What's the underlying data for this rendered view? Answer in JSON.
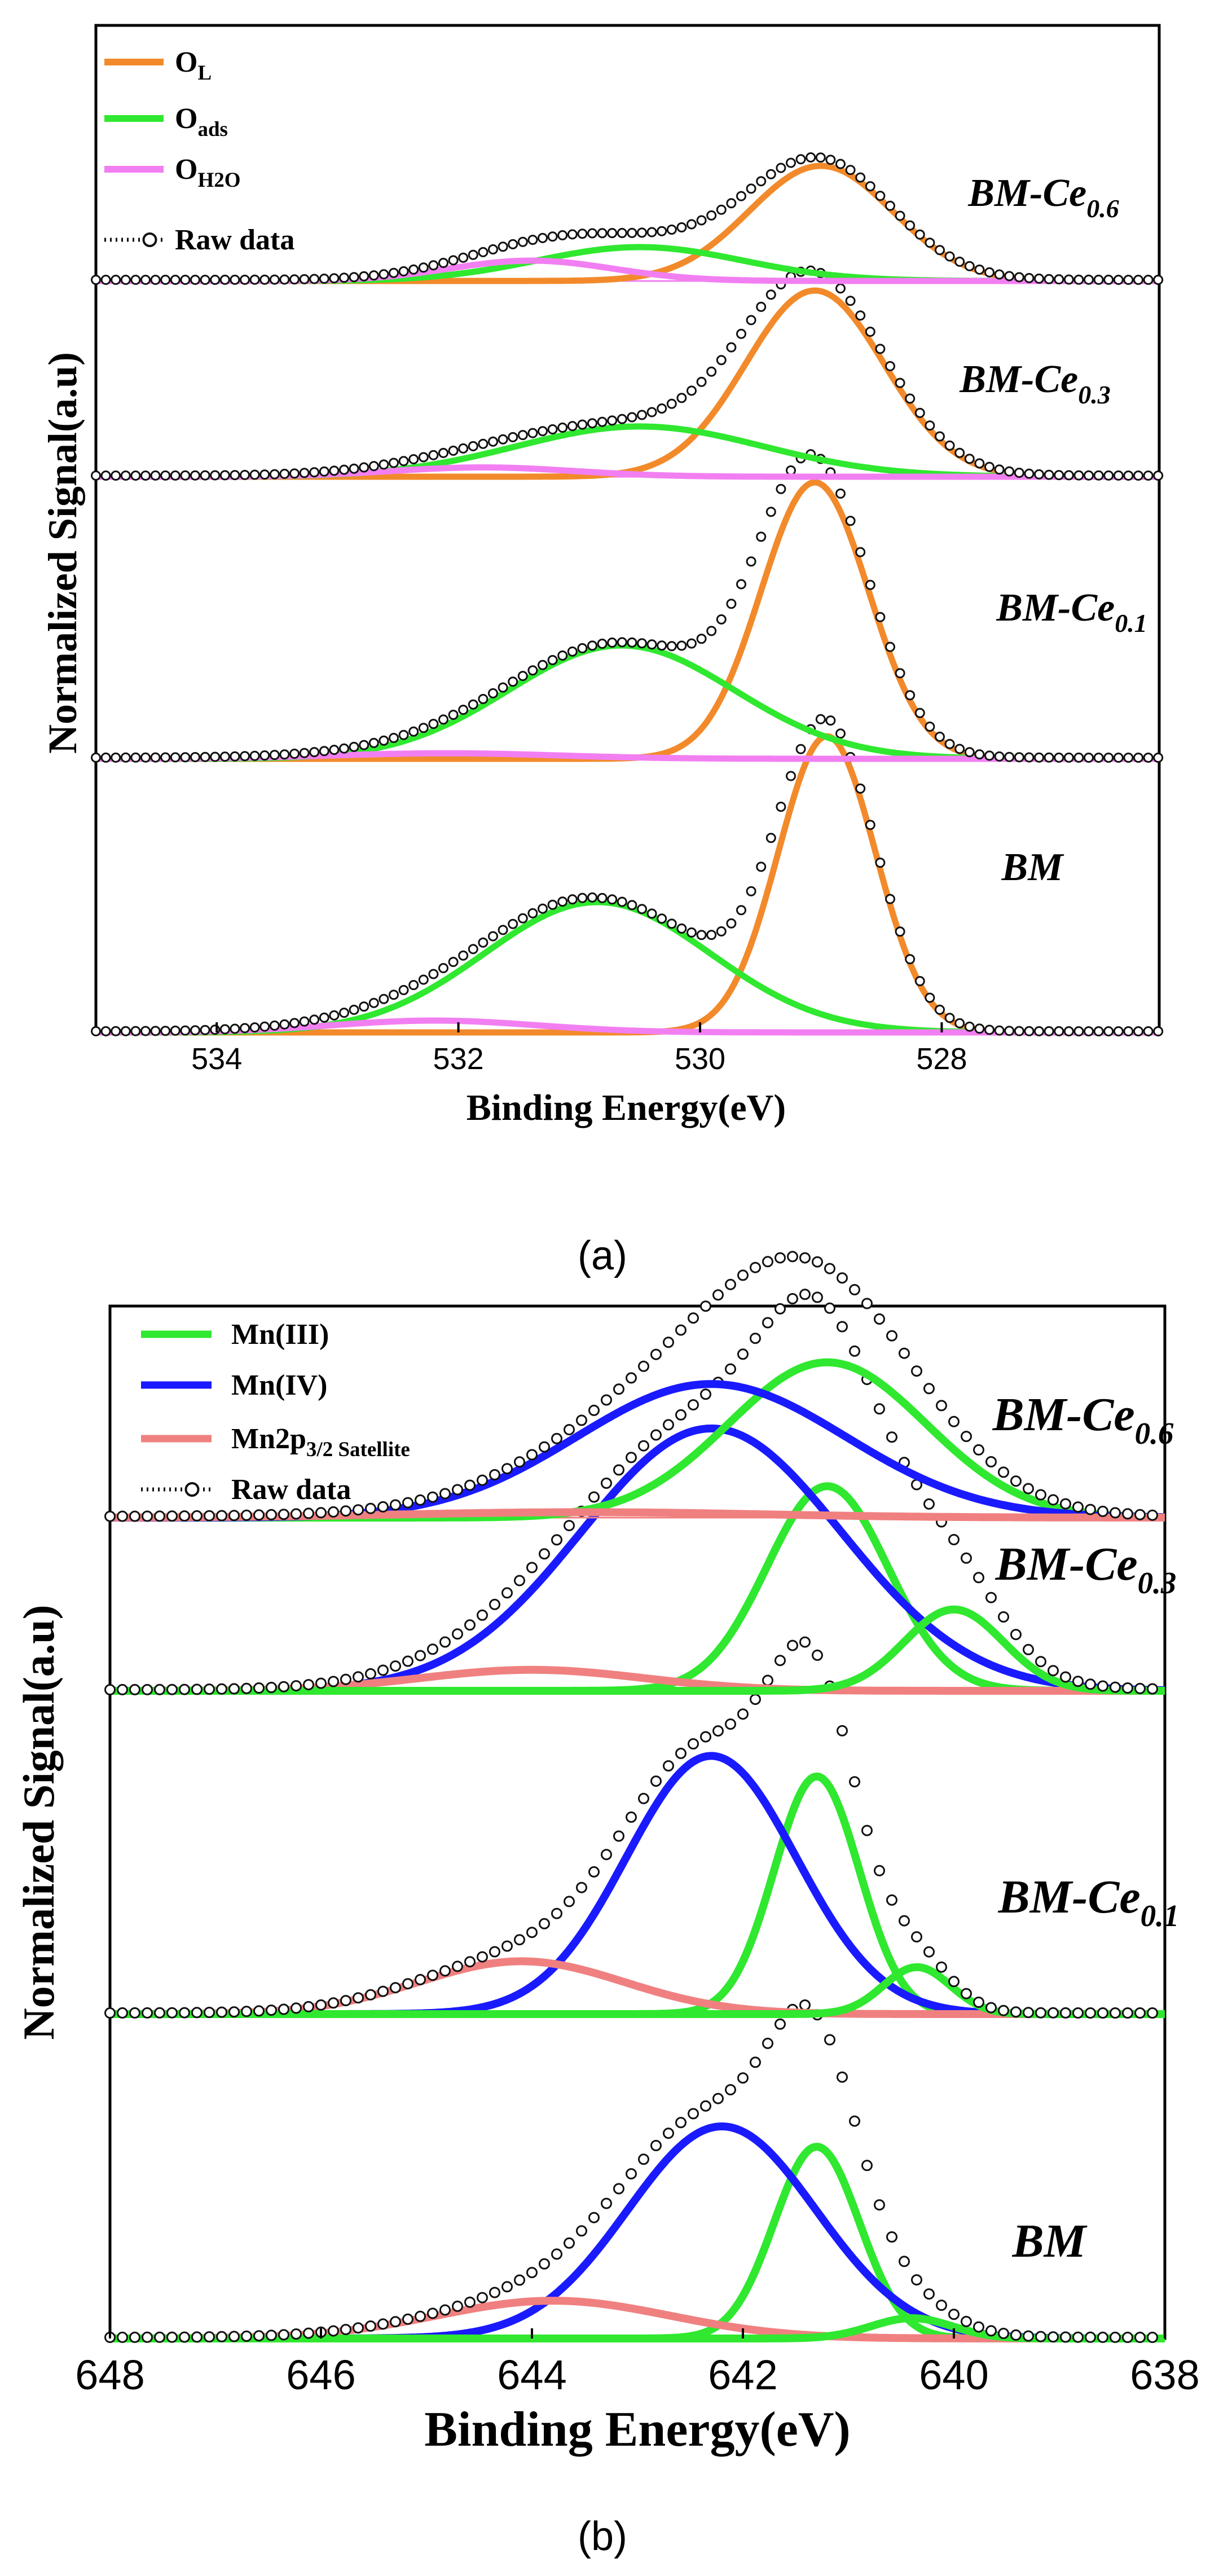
{
  "chart_data": [
    {
      "panel_label": "(a)",
      "type": "line",
      "xlabel": "Binding Energy(eV)",
      "ylabel": "Normalized Signal(a.u)",
      "xlim": [
        535.0,
        526.2
      ],
      "xticks": [
        534,
        532,
        530,
        528
      ],
      "xtick_labels": [
        "534",
        "532",
        "530",
        "528"
      ],
      "colors": {
        "O_L": "#f28a2b",
        "O_ads": "#2fe82f",
        "O_H2O": "#f27ff2",
        "raw": "#111111"
      },
      "legend": [
        {
          "key": "O_L",
          "main": "O",
          "sub": "L"
        },
        {
          "key": "O_ads",
          "main": "O",
          "sub": "ads"
        },
        {
          "key": "O_H2O",
          "main": "O",
          "sub": "H2O"
        },
        {
          "key": "raw",
          "text": "Raw data"
        }
      ],
      "samples": [
        {
          "name": "BM",
          "sub": "",
          "components": [
            {
              "key": "O_L",
              "center": 528.95,
              "fwhm": 0.95,
              "height": 1.0
            },
            {
              "key": "O_ads",
              "center": 530.85,
              "fwhm": 2.2,
              "height": 0.44
            },
            {
              "key": "O_H2O",
              "center": 532.2,
              "fwhm": 2.0,
              "height": 0.04
            }
          ]
        },
        {
          "name": "BM-Ce",
          "sub": "0.1",
          "components": [
            {
              "key": "O_L",
              "center": 529.05,
              "fwhm": 1.05,
              "height": 1.0
            },
            {
              "key": "O_ads",
              "center": 530.65,
              "fwhm": 2.2,
              "height": 0.41
            },
            {
              "key": "O_H2O",
              "center": 532.1,
              "fwhm": 2.2,
              "height": 0.02
            }
          ]
        },
        {
          "name": "BM-Ce",
          "sub": "0.3",
          "components": [
            {
              "key": "O_L",
              "center": 529.05,
              "fwhm": 1.35,
              "height": 1.0
            },
            {
              "key": "O_ads",
              "center": 530.5,
              "fwhm": 2.4,
              "height": 0.27
            },
            {
              "key": "O_H2O",
              "center": 531.8,
              "fwhm": 1.8,
              "height": 0.05
            }
          ]
        },
        {
          "name": "BM-Ce",
          "sub": "0.6",
          "components": [
            {
              "key": "O_L",
              "center": 529.0,
              "fwhm": 1.4,
              "height": 0.85
            },
            {
              "key": "O_ads",
              "center": 530.5,
              "fwhm": 2.0,
              "height": 0.25
            },
            {
              "key": "O_H2O",
              "center": 531.4,
              "fwhm": 1.6,
              "height": 0.15
            }
          ]
        }
      ]
    },
    {
      "panel_label": "(b)",
      "type": "line",
      "xlabel": "Binding Energy(eV)",
      "ylabel": "Normalized Signal(a.u)",
      "xlim": [
        648.0,
        638.0
      ],
      "xticks": [
        648,
        646,
        644,
        642,
        640,
        638
      ],
      "xtick_labels": [
        "648",
        "646",
        "644",
        "642",
        "640",
        "638"
      ],
      "colors": {
        "MnIII": "#2fe82f",
        "MnIV": "#1a1aff",
        "sat": "#f08080",
        "raw": "#111111"
      },
      "legend": [
        {
          "key": "MnIII",
          "text": "Mn(III)"
        },
        {
          "key": "MnIV",
          "text": "Mn(IV)"
        },
        {
          "key": "sat",
          "main": "Mn2p",
          "sub": "3/2 Satellite"
        },
        {
          "key": "raw",
          "text": "Raw data"
        }
      ],
      "samples": [
        {
          "name": "BM",
          "sub": "",
          "components": [
            {
              "key": "MnIII",
              "center": 641.3,
              "fwhm": 0.95,
              "height": 0.66
            },
            {
              "key": "MnIV",
              "center": 642.2,
              "fwhm": 2.1,
              "height": 0.73
            },
            {
              "key": "sat",
              "center": 643.8,
              "fwhm": 2.6,
              "height": 0.13
            },
            {
              "key": "MnIII",
              "center": 640.4,
              "fwhm": 0.9,
              "height": 0.07
            }
          ]
        },
        {
          "name": "BM-Ce",
          "sub": "0.1",
          "components": [
            {
              "key": "MnIII",
              "center": 641.3,
              "fwhm": 0.95,
              "height": 0.81
            },
            {
              "key": "MnIV",
              "center": 642.3,
              "fwhm": 1.9,
              "height": 0.88
            },
            {
              "key": "sat",
              "center": 644.1,
              "fwhm": 2.3,
              "height": 0.18
            },
            {
              "key": "MnIII",
              "center": 640.35,
              "fwhm": 0.75,
              "height": 0.16
            }
          ]
        },
        {
          "name": "BM-Ce",
          "sub": "0.3",
          "components": [
            {
              "key": "MnIII",
              "center": 641.2,
              "fwhm": 1.35,
              "height": 0.78
            },
            {
              "key": "MnIV",
              "center": 642.3,
              "fwhm": 2.9,
              "height": 1.0
            },
            {
              "key": "sat",
              "center": 644.0,
              "fwhm": 2.5,
              "height": 0.08
            },
            {
              "key": "MnIII",
              "center": 640.0,
              "fwhm": 1.1,
              "height": 0.31
            }
          ]
        },
        {
          "name": "BM-Ce",
          "sub": "0.6",
          "components": [
            {
              "key": "MnIII",
              "center": 641.2,
              "fwhm": 2.2,
              "height": 0.86
            },
            {
              "key": "MnIV",
              "center": 642.3,
              "fwhm": 3.0,
              "height": 0.74
            },
            {
              "key": "sat",
              "center": 643.5,
              "fwhm": 4.0,
              "height": 0.03
            }
          ]
        }
      ]
    }
  ]
}
